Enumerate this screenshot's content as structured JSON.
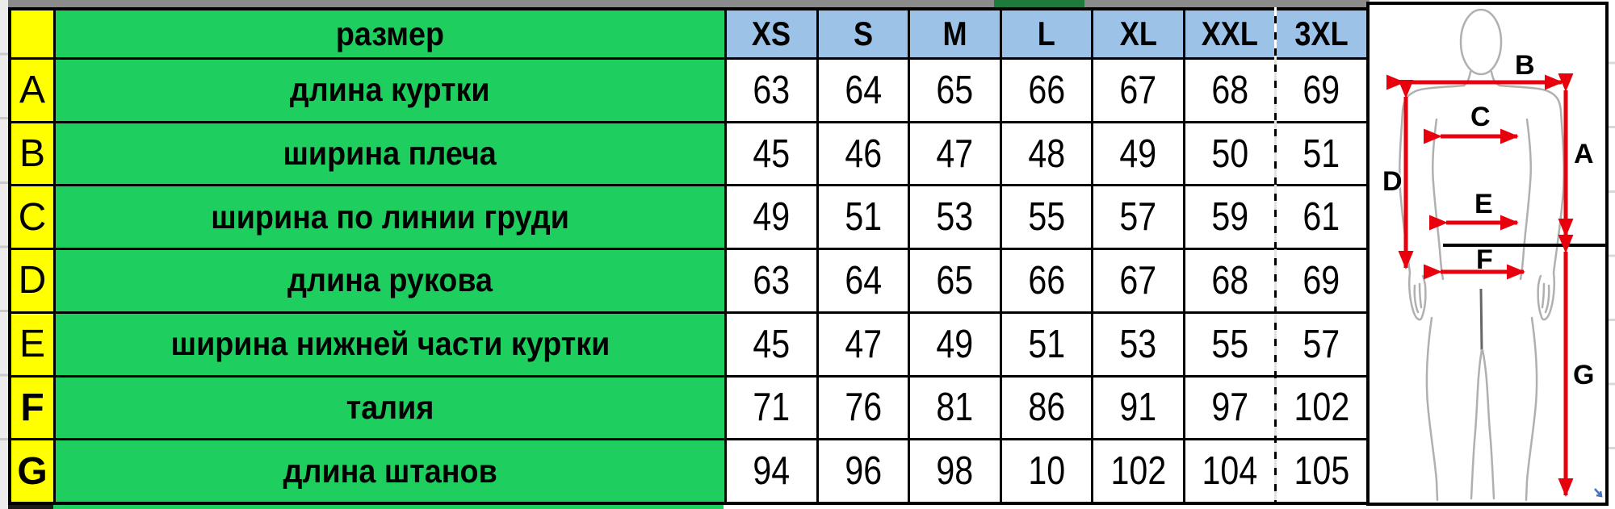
{
  "chart_data": {
    "type": "table",
    "title": "размер",
    "corner_header": "размер",
    "size_columns": [
      "XS",
      "S",
      "M",
      "L",
      "XL",
      "XXL",
      "3XL"
    ],
    "rows": [
      {
        "letter": "A",
        "label": "длина куртки",
        "letter_bold": false,
        "values": [
          63,
          64,
          65,
          66,
          67,
          68,
          69
        ]
      },
      {
        "letter": "B",
        "label": "ширина плеча",
        "letter_bold": false,
        "values": [
          45,
          46,
          47,
          48,
          49,
          50,
          51
        ]
      },
      {
        "letter": "C",
        "label": "ширина по линии груди",
        "letter_bold": false,
        "values": [
          49,
          51,
          53,
          55,
          57,
          59,
          61
        ]
      },
      {
        "letter": "D",
        "label": "длина рукова",
        "letter_bold": false,
        "values": [
          63,
          64,
          65,
          66,
          67,
          68,
          69
        ]
      },
      {
        "letter": "E",
        "label": "ширина нижней части куртки",
        "letter_bold": false,
        "values": [
          45,
          47,
          49,
          51,
          53,
          55,
          57
        ]
      },
      {
        "letter": "F",
        "label": "талия",
        "letter_bold": true,
        "values": [
          71,
          76,
          81,
          86,
          91,
          97,
          102
        ]
      },
      {
        "letter": "G",
        "label": "длина штанов",
        "letter_bold": true,
        "values": [
          94,
          96,
          98,
          10,
          102,
          104,
          105
        ]
      }
    ],
    "layout_hints": {
      "units": "cm (implied)",
      "grid": "black cell borders",
      "page_break_dashed_line": "between XXL and 3XL"
    }
  },
  "diagram": {
    "description": "human body outline with red measurement arrows",
    "labels": [
      "A",
      "B",
      "C",
      "D",
      "E",
      "F",
      "G"
    ]
  },
  "colors": {
    "row_header_bg": "#ffff00",
    "label_bg": "#1ecf5f",
    "size_header_bg": "#9cc2e8",
    "cell_bg": "#ffffff",
    "grid_line": "#000000",
    "arrow_red": "#e8000d",
    "body_outline": "#b0b0b0",
    "top_strip": "#8b8b8b",
    "top_strip_accent": "#1e7b3c"
  }
}
